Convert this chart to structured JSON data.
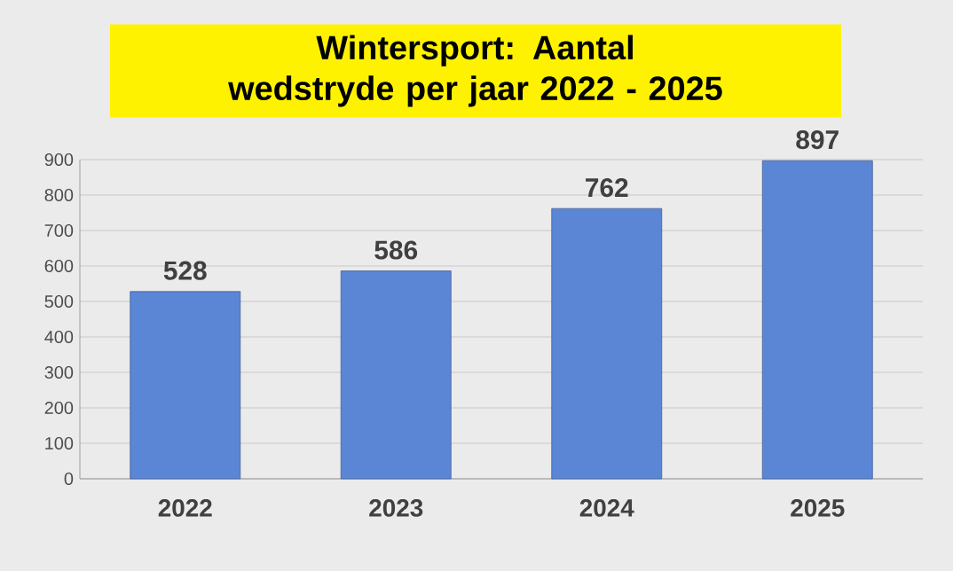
{
  "chart_data": {
    "type": "bar",
    "title": "Wintersport:  Aantal wedstryde per jaar 2022 - 2025",
    "categories": [
      "2022",
      "2023",
      "2024",
      "2025"
    ],
    "values": [
      528,
      586,
      762,
      897
    ],
    "color": "#5b86d6",
    "ylim": [
      0,
      900
    ],
    "yticks": [
      0,
      100,
      200,
      300,
      400,
      500,
      600,
      700,
      800,
      900
    ],
    "grid": "y",
    "data_labels": true
  }
}
